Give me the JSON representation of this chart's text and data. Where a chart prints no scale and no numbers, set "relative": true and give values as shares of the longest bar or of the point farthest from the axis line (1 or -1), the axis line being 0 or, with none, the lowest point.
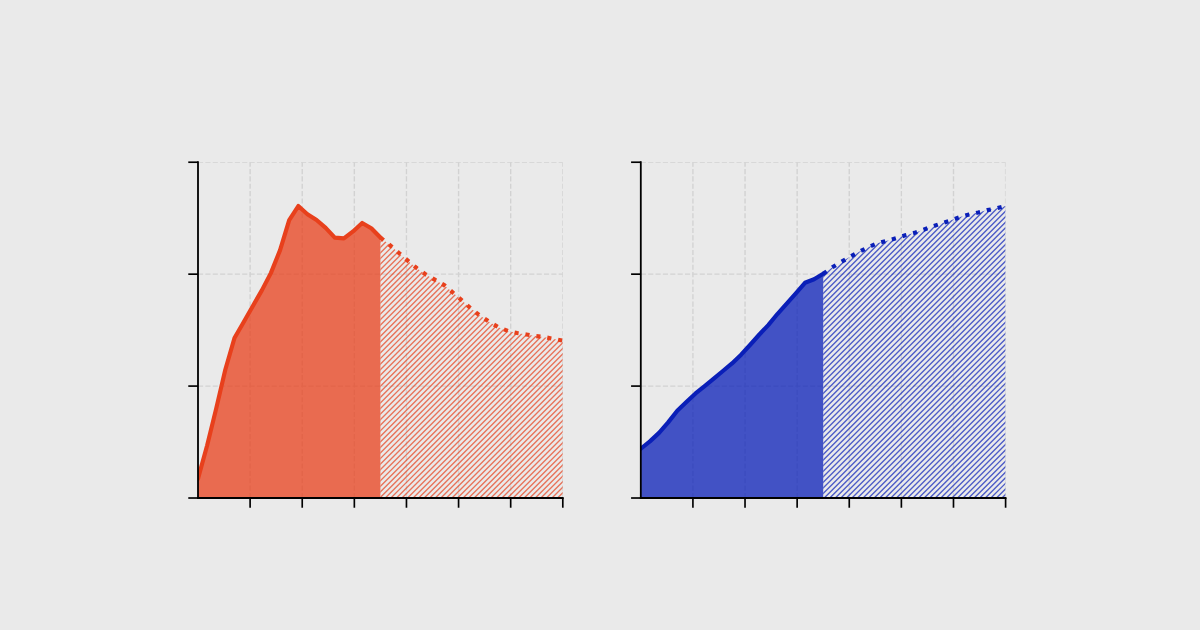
{
  "chart_data": [
    {
      "type": "area",
      "relative": true,
      "grid": true,
      "tick_labels": false,
      "categories": [
        null,
        null,
        null,
        null,
        null,
        null,
        null,
        null,
        null,
        null,
        null,
        null,
        null,
        null,
        null,
        null,
        null,
        null,
        null,
        null,
        null,
        null,
        null,
        null,
        null,
        null,
        null,
        null,
        null,
        null,
        null,
        null,
        null,
        null,
        null,
        null,
        null,
        null,
        null,
        null,
        null
      ],
      "series": [
        {
          "color": "#e8401c",
          "line_style": "solid",
          "values": [
            0.066,
            0.18,
            0.307,
            0.44,
            0.548,
            0.602,
            0.657,
            0.711,
            0.771,
            0.849,
            0.952,
            1.0,
            0.972,
            0.952,
            0.925,
            0.892,
            0.889,
            0.913,
            0.942,
            0.924,
            0.892,
            null,
            null,
            null,
            null,
            null,
            null,
            null,
            null,
            null,
            null,
            null,
            null,
            null,
            null,
            null,
            null,
            null,
            null,
            null,
            null
          ]
        },
        {
          "color": "#e8401c",
          "line_style": "dotted",
          "values": [
            null,
            null,
            null,
            null,
            null,
            null,
            null,
            null,
            null,
            null,
            null,
            null,
            null,
            null,
            null,
            null,
            null,
            null,
            null,
            null,
            0.892,
            0.867,
            0.84,
            0.813,
            0.787,
            0.765,
            0.747,
            0.729,
            0.702,
            0.675,
            0.647,
            0.623,
            0.602,
            0.584,
            0.572,
            0.565,
            0.56,
            0.555,
            0.551,
            0.545,
            0.539
          ]
        }
      ]
    },
    {
      "type": "area",
      "relative": true,
      "grid": true,
      "tick_labels": false,
      "categories": [
        null,
        null,
        null,
        null,
        null,
        null,
        null,
        null,
        null,
        null,
        null,
        null,
        null,
        null,
        null,
        null,
        null,
        null,
        null,
        null,
        null,
        null,
        null,
        null,
        null,
        null,
        null,
        null,
        null,
        null,
        null,
        null,
        null,
        null,
        null,
        null,
        null,
        null,
        null,
        null,
        null
      ],
      "series": [
        {
          "color": "#0a1fb8",
          "line_style": "solid",
          "values": [
            0.169,
            0.194,
            0.223,
            0.259,
            0.299,
            0.329,
            0.358,
            0.383,
            0.409,
            0.435,
            0.461,
            0.491,
            0.525,
            0.56,
            0.593,
            0.631,
            0.666,
            0.701,
            0.737,
            0.749,
            0.768,
            null,
            null,
            null,
            null,
            null,
            null,
            null,
            null,
            null,
            null,
            null,
            null,
            null,
            null,
            null,
            null,
            null,
            null,
            null,
            null
          ]
        },
        {
          "color": "#0a1fb8",
          "line_style": "dotted",
          "values": [
            null,
            null,
            null,
            null,
            null,
            null,
            null,
            null,
            null,
            null,
            null,
            null,
            null,
            null,
            null,
            null,
            null,
            null,
            null,
            null,
            0.768,
            0.79,
            0.809,
            0.827,
            0.844,
            0.86,
            0.873,
            0.881,
            0.89,
            0.9,
            0.908,
            0.919,
            0.93,
            0.941,
            0.951,
            0.962,
            0.971,
            0.978,
            0.986,
            0.992,
            1.0
          ]
        }
      ]
    }
  ]
}
